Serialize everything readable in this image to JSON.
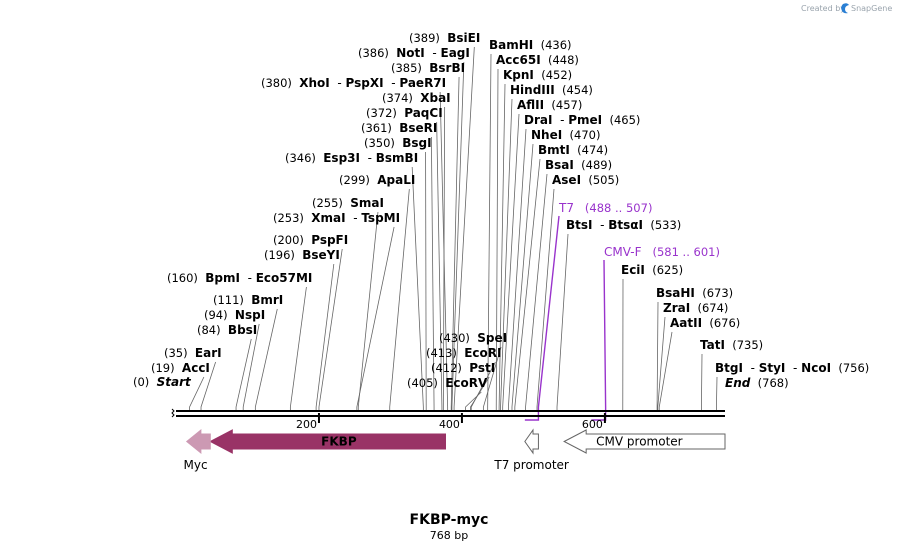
{
  "watermark": {
    "created_by": "Created by",
    "brand": "SnapGene"
  },
  "map": {
    "name": "FKBP-myc",
    "length_label": "768 bp",
    "length_bp": 768,
    "ticks": [
      {
        "bp": 200,
        "label": "200"
      },
      {
        "bp": 400,
        "label": "400"
      },
      {
        "bp": 600,
        "label": "600"
      }
    ],
    "sites": [
      {
        "names": [
          "Start"
        ],
        "italic": true,
        "pos": "(0)",
        "bp": 0
      },
      {
        "names": [
          "AccI"
        ],
        "pos": "(19)",
        "bp": 19
      },
      {
        "names": [
          "EarI"
        ],
        "pos": "(35)",
        "bp": 35
      },
      {
        "names": [
          "BbsI"
        ],
        "pos": "(84)",
        "bp": 84
      },
      {
        "names": [
          "NspI"
        ],
        "pos": "(94)",
        "bp": 94
      },
      {
        "names": [
          "BmrI"
        ],
        "pos": "(111)",
        "bp": 111
      },
      {
        "names": [
          "BpmI",
          "Eco57MI"
        ],
        "pos": "(160)",
        "bp": 160
      },
      {
        "names": [
          "BseYI"
        ],
        "pos": "(196)",
        "bp": 196
      },
      {
        "names": [
          "PspFI"
        ],
        "pos": "(200)",
        "bp": 200
      },
      {
        "names": [
          "XmaI",
          "TspMI"
        ],
        "pos": "(253)",
        "bp": 253
      },
      {
        "names": [
          "SmaI"
        ],
        "pos": "(255)",
        "bp": 255
      },
      {
        "names": [
          "ApaLI"
        ],
        "pos": "(299)",
        "bp": 299
      },
      {
        "names": [
          "Esp3I",
          "BsmBI"
        ],
        "pos": "(346)",
        "bp": 346
      },
      {
        "names": [
          "BsgI"
        ],
        "pos": "(350)",
        "bp": 350
      },
      {
        "names": [
          "BseRI"
        ],
        "pos": "(361)",
        "bp": 361
      },
      {
        "names": [
          "PaqCI"
        ],
        "pos": "(372)",
        "bp": 372
      },
      {
        "names": [
          "XbaI"
        ],
        "pos": "(374)",
        "bp": 374
      },
      {
        "names": [
          "XhoI",
          "PspXI",
          "PaeR7I"
        ],
        "pos": "(380)",
        "bp": 380
      },
      {
        "names": [
          "BsrBI"
        ],
        "pos": "(385)",
        "bp": 385
      },
      {
        "names": [
          "NotI",
          "EagI"
        ],
        "pos": "(386)",
        "bp": 386
      },
      {
        "names": [
          "BsiEI"
        ],
        "pos": "(389)",
        "bp": 389
      },
      {
        "names": [
          "EcoRV"
        ],
        "pos": "(405)",
        "bp": 405
      },
      {
        "names": [
          "PstI"
        ],
        "pos": "(412)",
        "bp": 412
      },
      {
        "names": [
          "EcoRI"
        ],
        "pos": "(413)",
        "bp": 413
      },
      {
        "names": [
          "SpeI"
        ],
        "pos": "(430)",
        "bp": 430
      },
      {
        "names": [
          "BamHI"
        ],
        "pos": "(436)",
        "bp": 436
      },
      {
        "names": [
          "Acc65I"
        ],
        "pos": "(448)",
        "bp": 448
      },
      {
        "names": [
          "KpnI"
        ],
        "pos": "(452)",
        "bp": 452
      },
      {
        "names": [
          "HindIII"
        ],
        "pos": "(454)",
        "bp": 454
      },
      {
        "names": [
          "AflII"
        ],
        "pos": "(457)",
        "bp": 457
      },
      {
        "names": [
          "DraI",
          "PmeI"
        ],
        "pos": "(465)",
        "bp": 465
      },
      {
        "names": [
          "NheI"
        ],
        "pos": "(470)",
        "bp": 470
      },
      {
        "names": [
          "BmtI"
        ],
        "pos": "(474)",
        "bp": 474
      },
      {
        "names": [
          "BsaI"
        ],
        "pos": "(489)",
        "bp": 489
      },
      {
        "names": [
          "AseI"
        ],
        "pos": "(505)",
        "bp": 505
      },
      {
        "names": [
          "BtsI",
          "BtsαI"
        ],
        "pos": "(533)",
        "bp": 533
      },
      {
        "names": [
          "EciI"
        ],
        "pos": "(625)",
        "bp": 625
      },
      {
        "names": [
          "BsaHI"
        ],
        "pos": "(673)",
        "bp": 673
      },
      {
        "names": [
          "ZraI"
        ],
        "pos": "(674)",
        "bp": 674
      },
      {
        "names": [
          "AatII"
        ],
        "pos": "(676)",
        "bp": 676
      },
      {
        "names": [
          "TatI"
        ],
        "pos": "(735)",
        "bp": 735
      },
      {
        "names": [
          "BtgI",
          "StyI",
          "NcoI"
        ],
        "pos": "(756)",
        "bp": 756
      },
      {
        "names": [
          "End"
        ],
        "italic": true,
        "pos": "(768)",
        "bp": 768
      }
    ],
    "primers": [
      {
        "name": "T7",
        "range": "(488 .. 507)",
        "start": 488,
        "end": 507
      },
      {
        "name": "CMV-F",
        "range": "(581 .. 601)",
        "start": 581,
        "end": 601
      }
    ],
    "features": [
      {
        "name": "FKBP",
        "start": 48,
        "end": 377,
        "direction": "reverse",
        "color": "#993366",
        "label_inside": true
      },
      {
        "name": "Myc",
        "start": 15,
        "end": 48,
        "direction": "reverse",
        "color": "#cc99b3",
        "label_inside": false
      },
      {
        "name": "T7 promoter",
        "start": 488,
        "end": 507,
        "direction": "reverse",
        "color": "#ffffff",
        "label_inside": false
      },
      {
        "name": "CMV promoter",
        "start": 543,
        "end": 768,
        "direction": "reverse",
        "color": "#ffffff",
        "label_inside": true
      }
    ]
  }
}
